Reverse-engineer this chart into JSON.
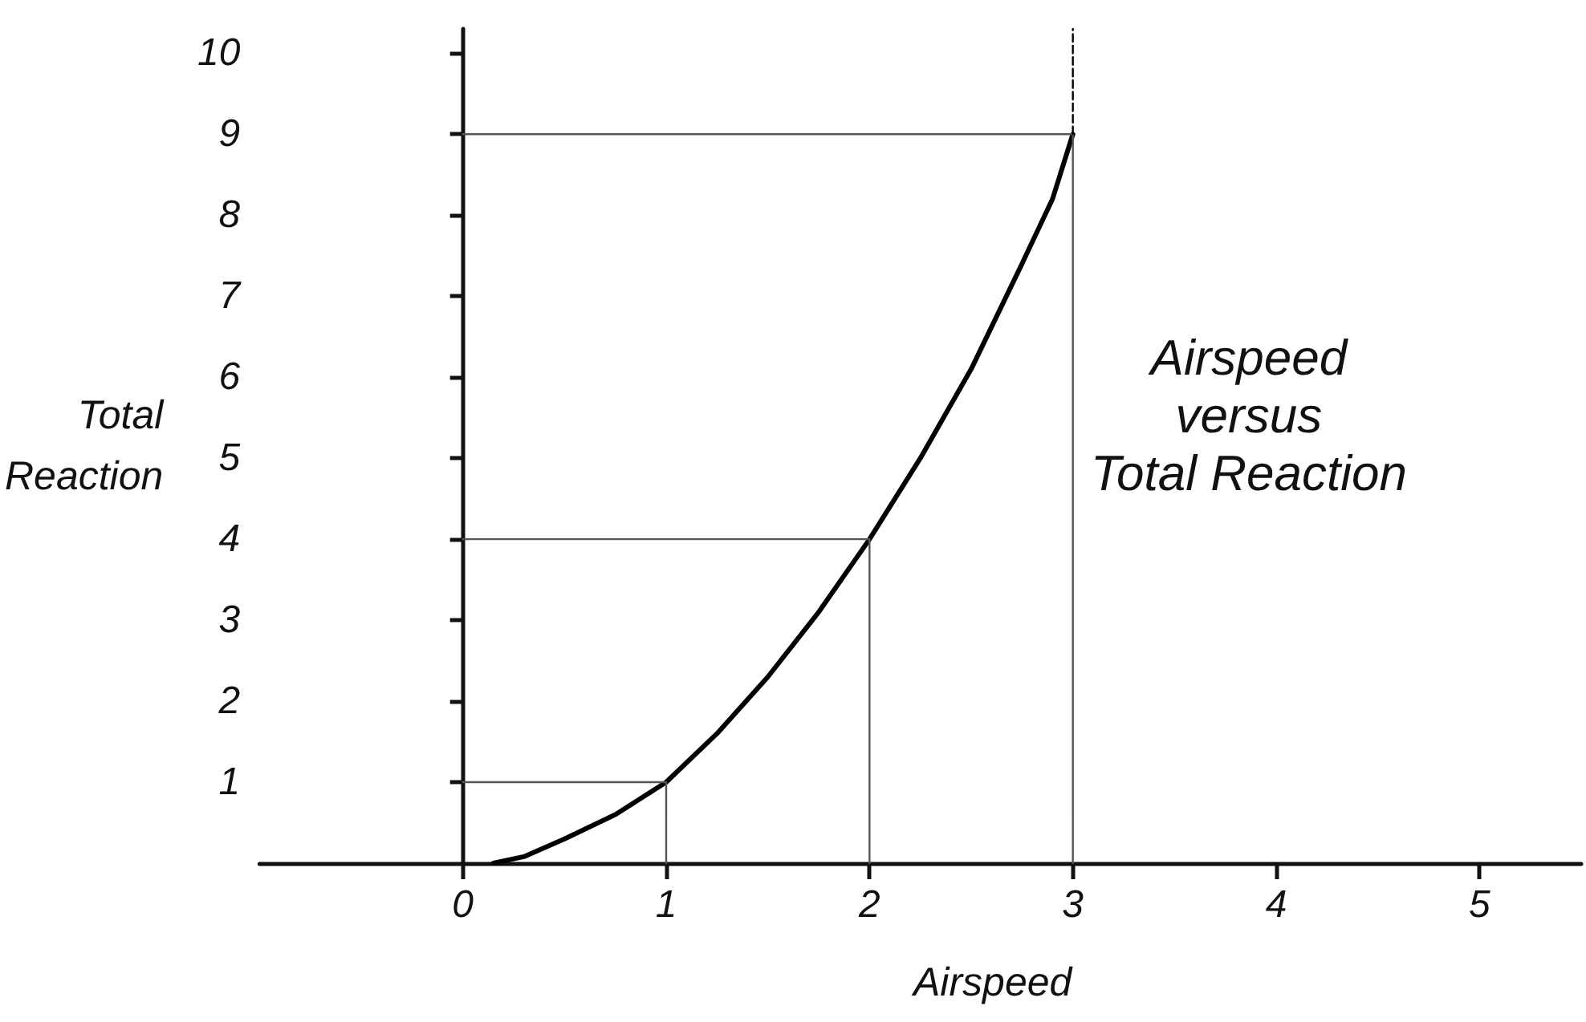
{
  "chart_data": {
    "type": "line",
    "title": "Airspeed\nversus\nTotal Reaction",
    "xlabel": "Airspeed",
    "ylabel": "Total\nReaction",
    "xlim": [
      -1,
      5.5
    ],
    "ylim": [
      0,
      10.3
    ],
    "xticks": [
      0,
      1,
      2,
      3,
      4,
      5
    ],
    "yticks": [
      1,
      2,
      3,
      4,
      5,
      6,
      7,
      8,
      9,
      10
    ],
    "marker": "none",
    "series": [
      {
        "x": [
          0.15,
          0.3,
          0.5,
          0.75,
          1,
          1.25,
          1.5,
          1.75,
          2,
          2.25,
          2.5,
          2.75,
          2.9,
          3
        ],
        "values": [
          0,
          0.08,
          0.3,
          0.6,
          1,
          1.6,
          2.3,
          3.1,
          4,
          5,
          6.1,
          7.4,
          8.2,
          9
        ],
        "color": "#000000",
        "line_style": "solid"
      },
      {
        "x": [
          0,
          1,
          1
        ],
        "values": [
          1,
          1,
          0
        ],
        "color": "#555555",
        "line_style": "solid"
      },
      {
        "x": [
          0,
          2,
          2
        ],
        "values": [
          4,
          4,
          0
        ],
        "color": "#555555",
        "line_style": "solid"
      },
      {
        "x": [
          0,
          3,
          3
        ],
        "values": [
          9,
          9,
          0
        ],
        "color": "#555555",
        "line_style": "solid"
      },
      {
        "x": [
          3,
          3
        ],
        "values": [
          9,
          10.3
        ],
        "color": "#000000",
        "line_style": "dashed"
      }
    ]
  }
}
